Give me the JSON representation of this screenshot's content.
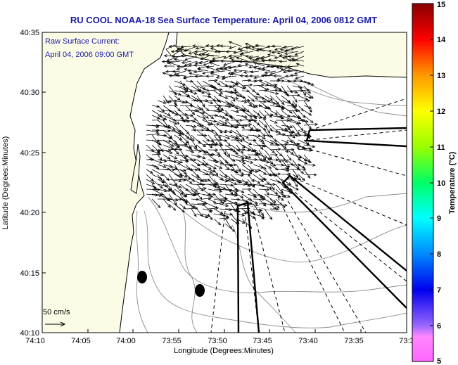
{
  "title": "RU COOL  NOAA-18  Sea Surface Temperature:  April 04, 2006 0812 GMT",
  "annotation": {
    "line1": "Raw Surface Current:",
    "line2": "April 04, 2006 09:00 GMT"
  },
  "scale_label": "50 cm/s",
  "x_axis": {
    "label": "Longitude (Degrees:Minutes)",
    "ticks": [
      "74:10",
      "74:05",
      "74:00",
      "73:55",
      "73:50",
      "73:45",
      "73:40",
      "73:35",
      "73:3"
    ]
  },
  "y_axis": {
    "label": "Latitude (Degrees:Minutes)",
    "ticks": [
      "40:35",
      "40:30",
      "40:25",
      "40:20",
      "40:15",
      "40:10"
    ]
  },
  "colorbar": {
    "label": "Temperature (°C)",
    "ticks": [
      "15",
      "14",
      "13",
      "12",
      "11",
      "10",
      "9",
      "8",
      "7",
      "6",
      "5"
    ]
  },
  "colors": {
    "title": "#1a1aa6",
    "land": "#fbfbe6",
    "water": "#ffffff",
    "frame": "#000000"
  }
}
